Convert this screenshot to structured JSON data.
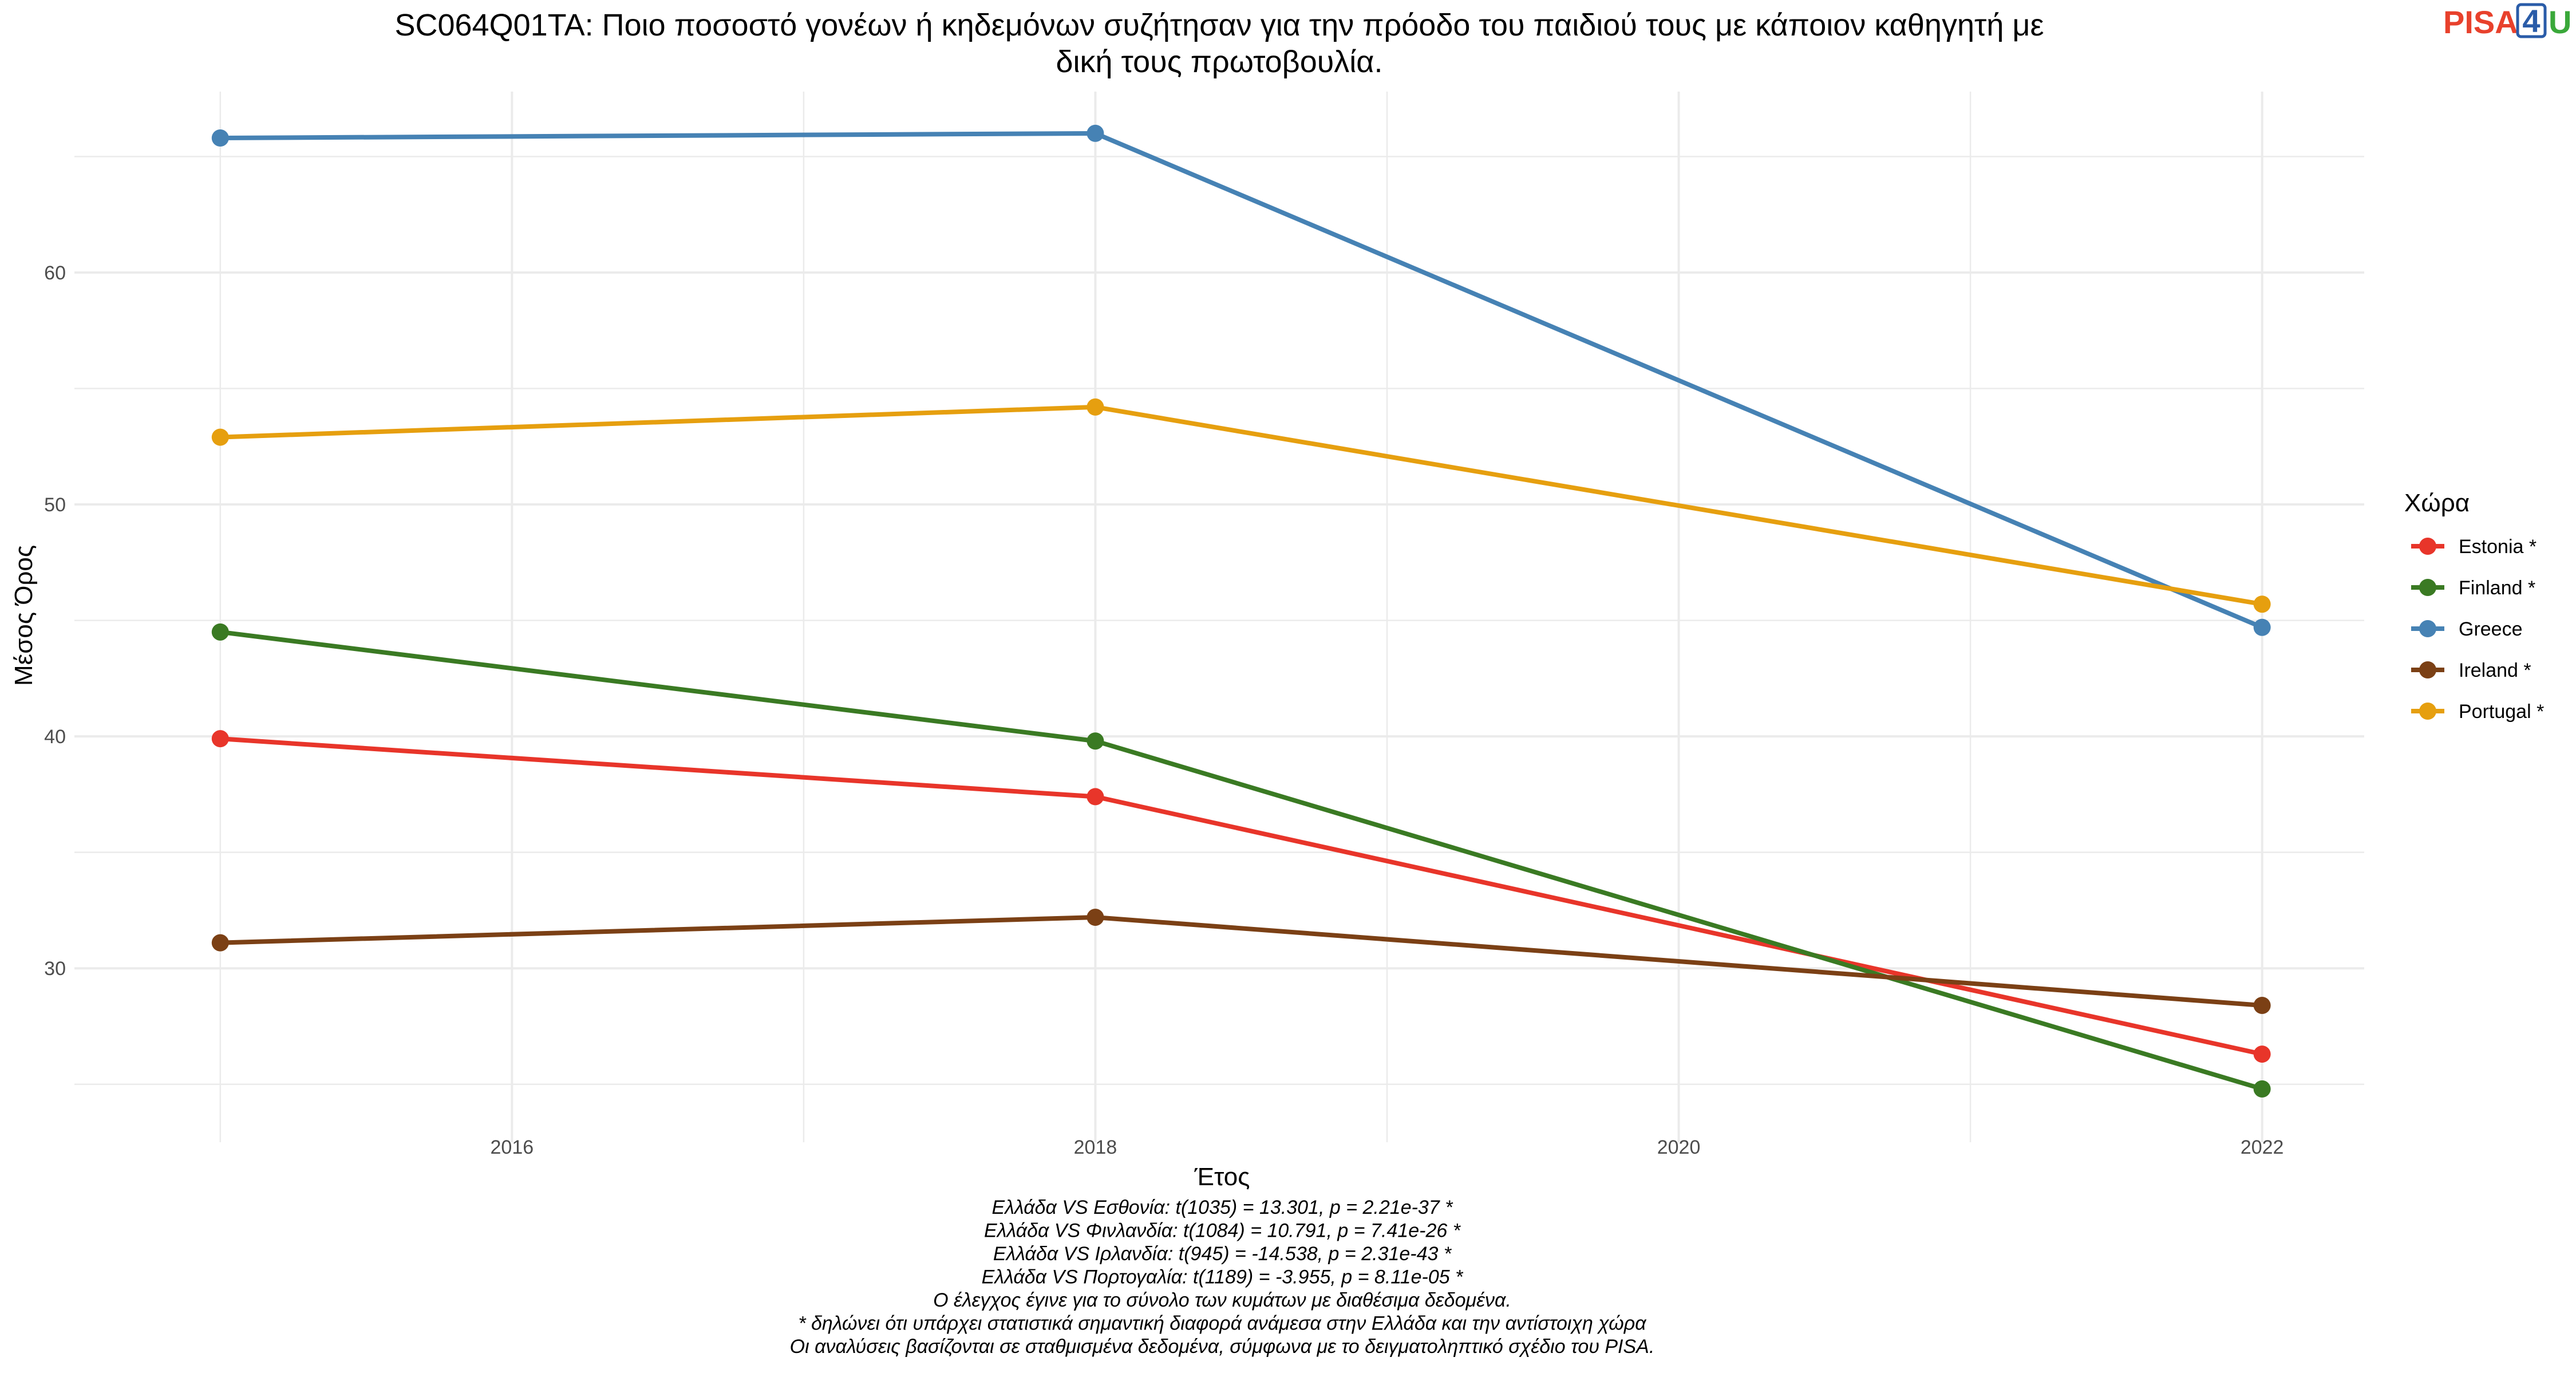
{
  "chart_data": {
    "type": "line",
    "title_lines": [
      "SC064Q01TA: Ποιο ποσοστό γονέων ή κηδεμόνων συζήτησαν για την πρόοδο του παιδιού τους με κάποιον καθηγητή με",
      "δική τους πρωτοβουλία."
    ],
    "xlabel": "Έτος",
    "ylabel": "Μέσος Όρος",
    "x_ticks": [
      2016,
      2018,
      2020,
      2022
    ],
    "y_ticks": [
      30,
      40,
      50,
      60
    ],
    "xlim": [
      2014.5,
      2022.35
    ],
    "ylim": [
      22.5,
      67.8
    ],
    "grid": true,
    "legend_title": "Χώρα",
    "legend_position": "right",
    "series": [
      {
        "name": "Estonia *",
        "color": "#e8352a",
        "x": [
          2015,
          2018,
          2022
        ],
        "y": [
          39.9,
          37.4,
          26.3
        ]
      },
      {
        "name": "Finland *",
        "color": "#3a7a23",
        "x": [
          2015,
          2018,
          2022
        ],
        "y": [
          44.5,
          39.8,
          24.8
        ]
      },
      {
        "name": "Greece",
        "color": "#4682b4",
        "x": [
          2015,
          2018,
          2022
        ],
        "y": [
          65.8,
          66.0,
          44.7
        ]
      },
      {
        "name": "Ireland *",
        "color": "#7b4015",
        "x": [
          2015,
          2018,
          2022
        ],
        "y": [
          31.1,
          32.2,
          28.4
        ]
      },
      {
        "name": "Portugal *",
        "color": "#e69f0f",
        "x": [
          2015,
          2018,
          2022
        ],
        "y": [
          52.9,
          54.2,
          45.7
        ]
      }
    ],
    "notes": [
      "Ελλάδα VS Εσθονία: t(1035) = 13.301, p = 2.21e-37 *",
      "Ελλάδα VS Φινλανδία: t(1084) = 10.791, p = 7.41e-26 *",
      "Ελλάδα VS Ιρλανδία: t(945) = -14.538, p = 2.31e-43 *",
      "Ελλάδα VS Πορτογαλία: t(1189) = -3.955, p = 8.11e-05 *",
      "Ο έλεγχος έγινε για το σύνολο των κυμάτων με διαθέσιμα δεδομένα.",
      "* δηλώνει ότι υπάρχει στατιστικά σημαντική διαφορά ανάμεσα στην Ελλάδα και την αντίστοιχη χώρα",
      "Οι αναλύσεις βασίζονται σε σταθμισμένα δεδομένα, σύμφωνα με το δειγματοληπτικό σχέδιο του PISA."
    ]
  },
  "logo": {
    "text_a": "PISA",
    "text_b": "4",
    "text_c": "U",
    "color_a": "#e8412c",
    "color_b": "#2a5ca8",
    "color_c": "#3aa83a"
  }
}
